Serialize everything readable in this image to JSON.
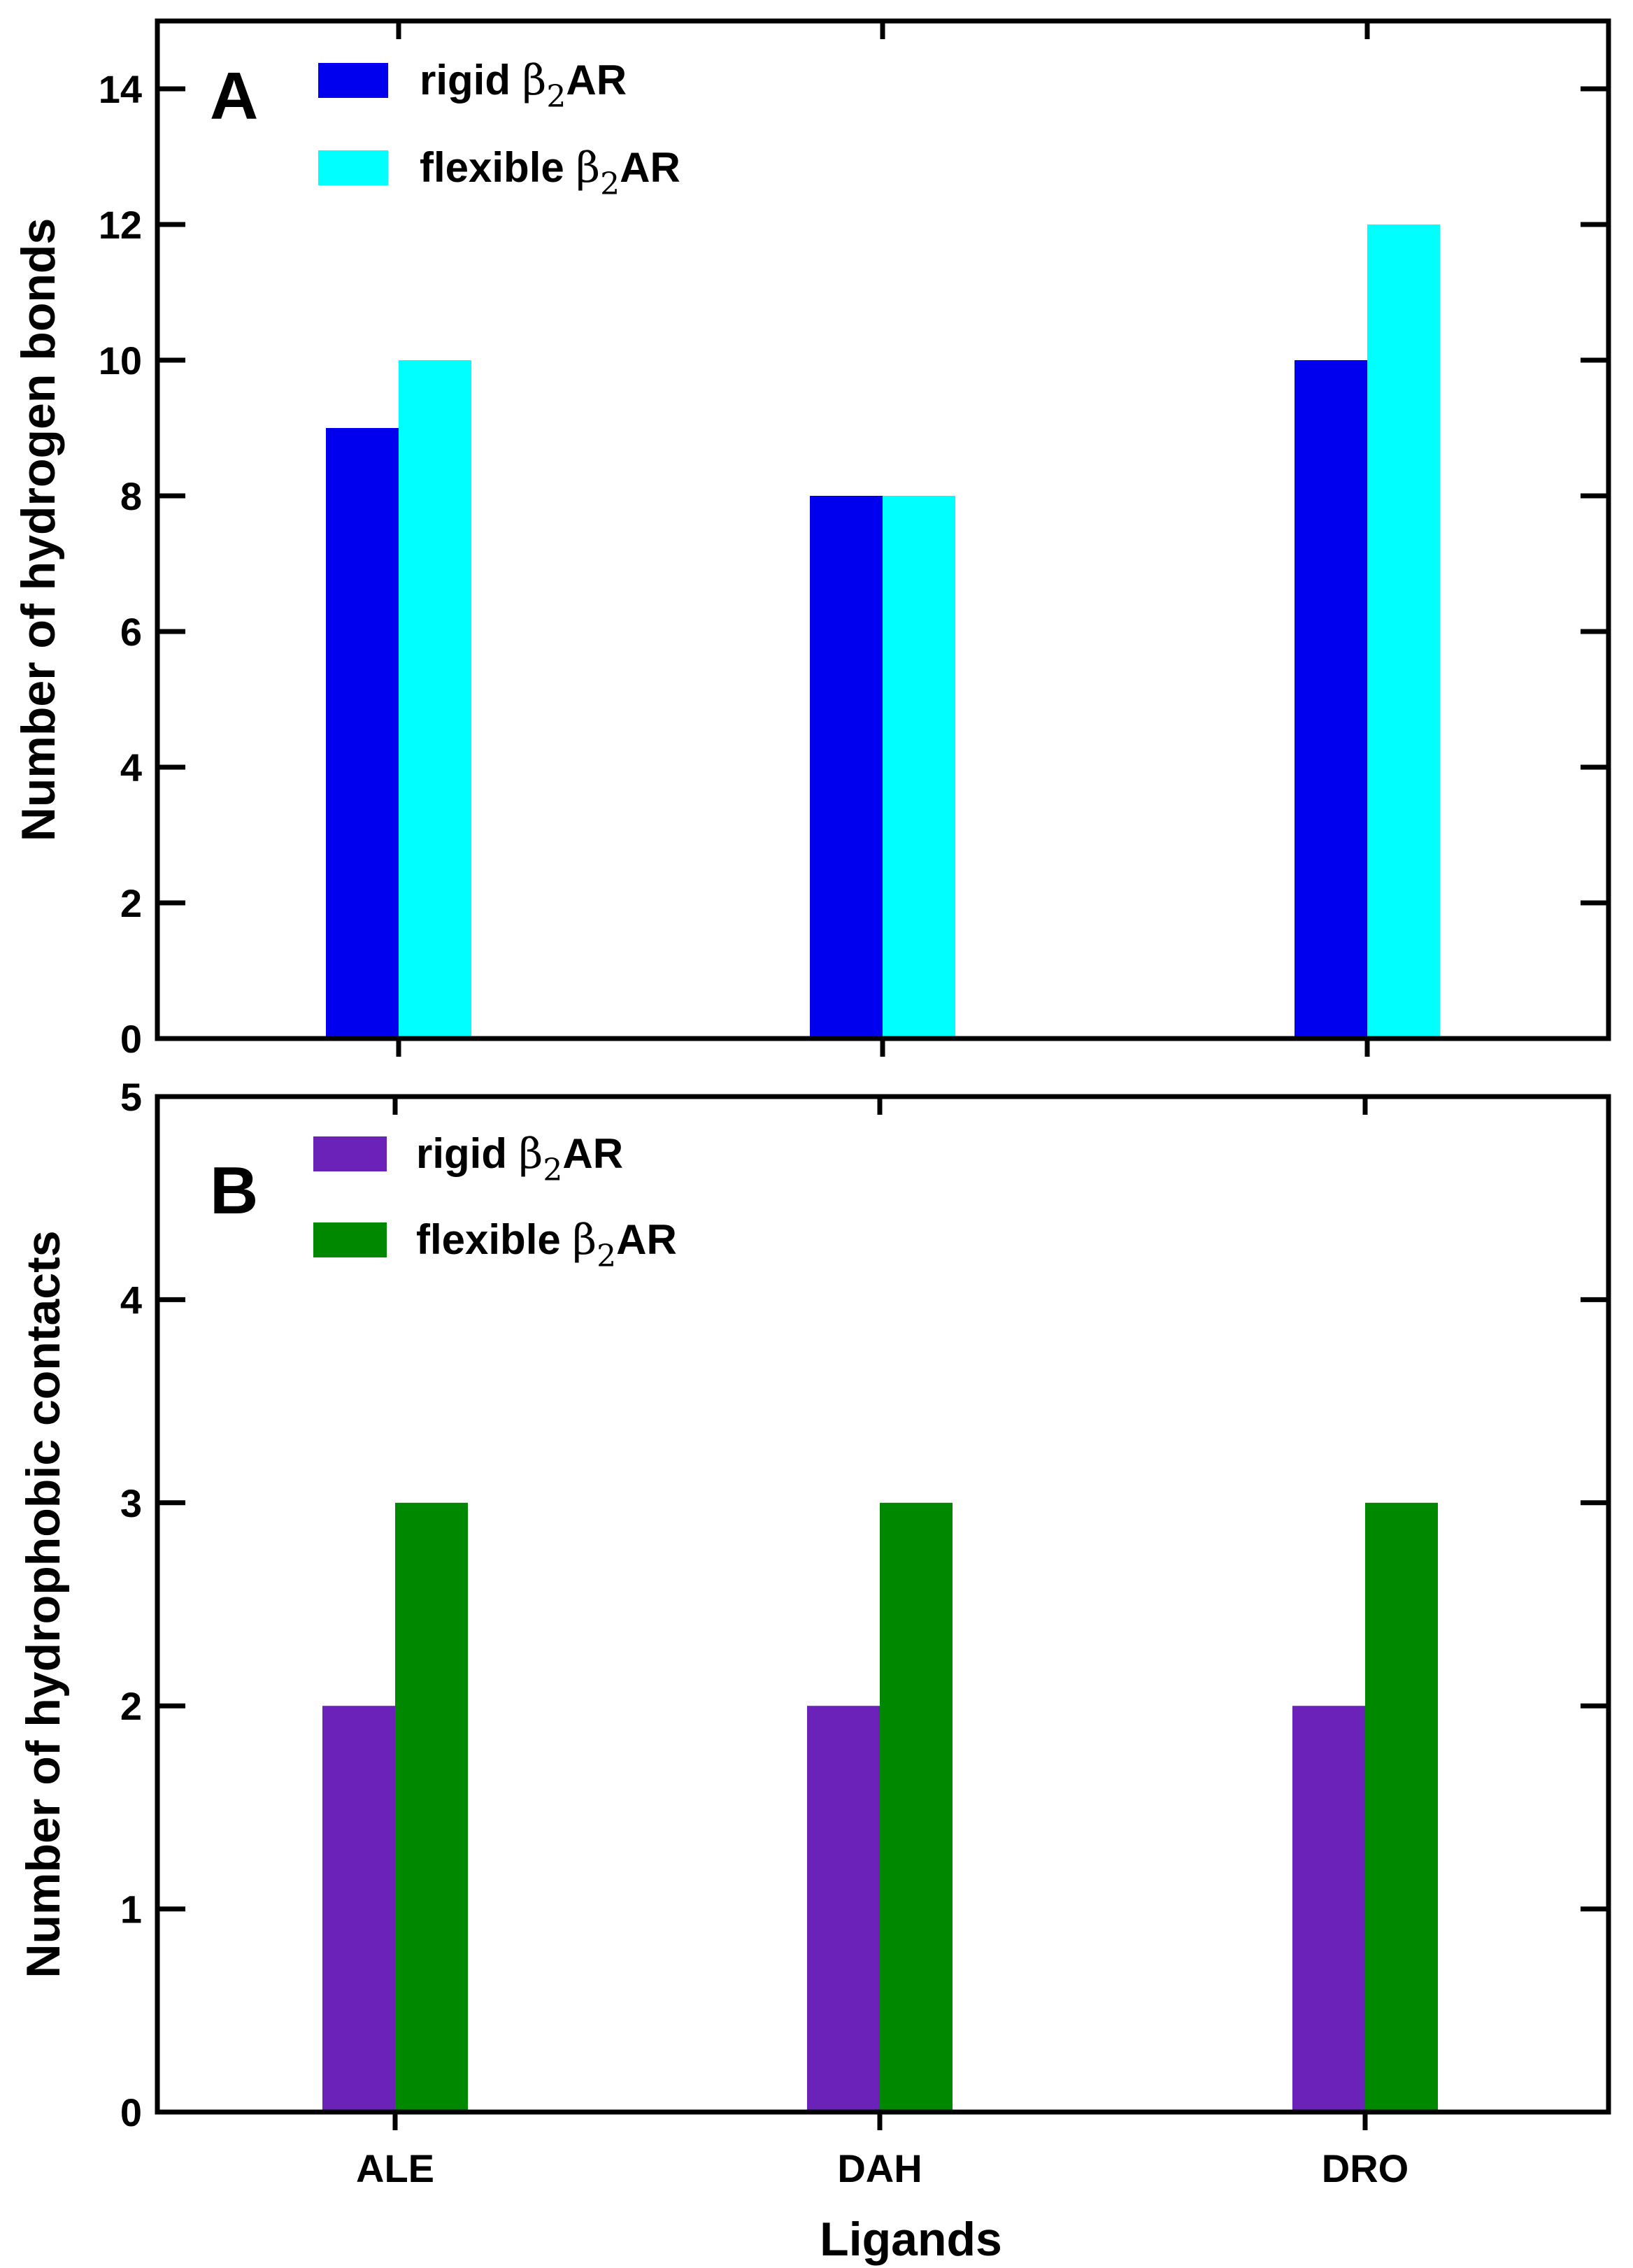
{
  "chart_data": [
    {
      "panel_label": "A",
      "type": "bar",
      "categories": [
        "ALE",
        "DAH",
        "DRO"
      ],
      "series": [
        {
          "name": "rigid",
          "legend_prefix": "rigid ",
          "legend_symbol": "β",
          "legend_subscript": "2",
          "legend_suffix": "AR",
          "color": "#0000ee",
          "values": [
            9,
            8,
            10
          ]
        },
        {
          "name": "flexible",
          "legend_prefix": "flexible ",
          "legend_symbol": "β",
          "legend_subscript": "2",
          "legend_suffix": "AR",
          "color": "#00ffff",
          "values": [
            10,
            8,
            12
          ]
        }
      ],
      "ylabel": "Number of hydrogen bonds",
      "xlabel": "",
      "ylim": [
        0,
        15
      ],
      "yticks": [
        0,
        2,
        4,
        6,
        8,
        10,
        12,
        14
      ],
      "show_x_tick_labels": false,
      "grid": false,
      "legend_position": "top-left"
    },
    {
      "panel_label": "B",
      "type": "bar",
      "categories": [
        "ALE",
        "DAH",
        "DRO"
      ],
      "series": [
        {
          "name": "rigid",
          "legend_prefix": "rigid ",
          "legend_symbol": "β",
          "legend_subscript": "2",
          "legend_suffix": "AR",
          "color": "#6a22b8",
          "values": [
            2,
            2,
            2
          ]
        },
        {
          "name": "flexible",
          "legend_prefix": "flexible ",
          "legend_symbol": "β",
          "legend_subscript": "2",
          "legend_suffix": "AR",
          "color": "#008800",
          "values": [
            3,
            3,
            3
          ]
        }
      ],
      "ylabel": "Number of hydrophobic contacts",
      "xlabel": "Ligands",
      "ylim": [
        0,
        5
      ],
      "yticks": [
        0,
        1,
        2,
        3,
        4,
        5
      ],
      "show_x_tick_labels": true,
      "grid": false,
      "legend_position": "top-left"
    }
  ]
}
